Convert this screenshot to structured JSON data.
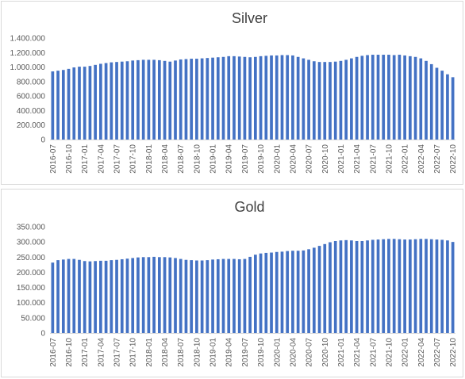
{
  "chart_data": [
    {
      "id": "silver",
      "type": "bar",
      "title": "Silver",
      "xlabel": "",
      "ylabel": "",
      "ylim": [
        0,
        1400000
      ],
      "yticks": [
        "0",
        "200.000",
        "400.000",
        "600.000",
        "800.000",
        "1.000.000",
        "1.200.000",
        "1.400.000"
      ],
      "grid": false,
      "legend": "none",
      "bar_color": "#4472c4",
      "categories": [
        "2016-07",
        "2016-08",
        "2016-09",
        "2016-10",
        "2016-11",
        "2016-12",
        "2017-01",
        "2017-02",
        "2017-03",
        "2017-04",
        "2017-05",
        "2017-06",
        "2017-07",
        "2017-08",
        "2017-09",
        "2017-10",
        "2017-11",
        "2017-12",
        "2018-01",
        "2018-02",
        "2018-03",
        "2018-04",
        "2018-05",
        "2018-06",
        "2018-07",
        "2018-08",
        "2018-09",
        "2018-10",
        "2018-11",
        "2018-12",
        "2019-01",
        "2019-02",
        "2019-03",
        "2019-04",
        "2019-05",
        "2019-06",
        "2019-07",
        "2019-08",
        "2019-09",
        "2019-10",
        "2019-11",
        "2019-12",
        "2020-01",
        "2020-02",
        "2020-03",
        "2020-04",
        "2020-05",
        "2020-06",
        "2020-07",
        "2020-08",
        "2020-09",
        "2020-10",
        "2020-11",
        "2020-12",
        "2021-01",
        "2021-02",
        "2021-03",
        "2021-04",
        "2021-05",
        "2021-06",
        "2021-07",
        "2021-08",
        "2021-09",
        "2021-10",
        "2021-11",
        "2021-12",
        "2022-01",
        "2022-02",
        "2022-03",
        "2022-04",
        "2022-05",
        "2022-06",
        "2022-07",
        "2022-08",
        "2022-09",
        "2022-10"
      ],
      "tick_labels": [
        "2016-07",
        "2016-10",
        "2017-01",
        "2017-04",
        "2017-07",
        "2017-10",
        "2018-01",
        "2018-04",
        "2018-07",
        "2018-10",
        "2019-01",
        "2019-04",
        "2019-07",
        "2019-10",
        "2020-01",
        "2020-04",
        "2020-07",
        "2020-10",
        "2021-01",
        "2021-04",
        "2021-07",
        "2021-10",
        "2022-01",
        "2022-04",
        "2022-07",
        "2022-10"
      ],
      "values": [
        940000,
        950000,
        960000,
        975000,
        995000,
        1005000,
        1005000,
        1015000,
        1030000,
        1045000,
        1055000,
        1065000,
        1070000,
        1075000,
        1080000,
        1090000,
        1095000,
        1100000,
        1100000,
        1100000,
        1095000,
        1085000,
        1075000,
        1090000,
        1105000,
        1110000,
        1115000,
        1115000,
        1120000,
        1125000,
        1130000,
        1135000,
        1140000,
        1150000,
        1150000,
        1145000,
        1140000,
        1135000,
        1140000,
        1150000,
        1155000,
        1160000,
        1160000,
        1165000,
        1165000,
        1160000,
        1140000,
        1120000,
        1100000,
        1080000,
        1070000,
        1070000,
        1070000,
        1075000,
        1085000,
        1100000,
        1120000,
        1140000,
        1155000,
        1165000,
        1170000,
        1170000,
        1170000,
        1170000,
        1165000,
        1170000,
        1160000,
        1150000,
        1140000,
        1120000,
        1085000,
        1040000,
        990000,
        950000,
        900000,
        860000
      ]
    },
    {
      "id": "gold",
      "type": "bar",
      "title": "Gold",
      "xlabel": "",
      "ylabel": "",
      "ylim": [
        0,
        350000
      ],
      "yticks": [
        "0",
        "50.000",
        "100.000",
        "150.000",
        "200.000",
        "250.000",
        "300.000",
        "350.000"
      ],
      "grid": false,
      "legend": "none",
      "bar_color": "#4472c4",
      "categories": [
        "2016-07",
        "2016-08",
        "2016-09",
        "2016-10",
        "2016-11",
        "2016-12",
        "2017-01",
        "2017-02",
        "2017-03",
        "2017-04",
        "2017-05",
        "2017-06",
        "2017-07",
        "2017-08",
        "2017-09",
        "2017-10",
        "2017-11",
        "2017-12",
        "2018-01",
        "2018-02",
        "2018-03",
        "2018-04",
        "2018-05",
        "2018-06",
        "2018-07",
        "2018-08",
        "2018-09",
        "2018-10",
        "2018-11",
        "2018-12",
        "2019-01",
        "2019-02",
        "2019-03",
        "2019-04",
        "2019-05",
        "2019-06",
        "2019-07",
        "2019-08",
        "2019-09",
        "2019-10",
        "2019-11",
        "2019-12",
        "2020-01",
        "2020-02",
        "2020-03",
        "2020-04",
        "2020-05",
        "2020-06",
        "2020-07",
        "2020-08",
        "2020-09",
        "2020-10",
        "2020-11",
        "2020-12",
        "2021-01",
        "2021-02",
        "2021-03",
        "2021-04",
        "2021-05",
        "2021-06",
        "2021-07",
        "2021-08",
        "2021-09",
        "2021-10",
        "2021-11",
        "2021-12",
        "2022-01",
        "2022-02",
        "2022-03",
        "2022-04",
        "2022-05",
        "2022-06",
        "2022-07",
        "2022-08",
        "2022-09",
        "2022-10"
      ],
      "tick_labels": [
        "2016-07",
        "2016-10",
        "2017-01",
        "2017-04",
        "2017-07",
        "2017-10",
        "2018-01",
        "2018-04",
        "2018-07",
        "2018-10",
        "2019-01",
        "2019-04",
        "2019-07",
        "2019-10",
        "2020-01",
        "2020-04",
        "2020-07",
        "2020-10",
        "2021-01",
        "2021-04",
        "2021-07",
        "2021-10",
        "2022-01",
        "2022-04",
        "2022-07",
        "2022-10"
      ],
      "values": [
        232000,
        240000,
        242000,
        244000,
        244000,
        241000,
        237000,
        236000,
        237000,
        238000,
        238000,
        240000,
        241000,
        243000,
        245000,
        247000,
        249000,
        250000,
        250000,
        251000,
        250000,
        250000,
        249000,
        247000,
        244000,
        241000,
        240000,
        239000,
        239000,
        240000,
        242000,
        243000,
        244000,
        244000,
        244000,
        243000,
        244000,
        251000,
        258000,
        262000,
        264000,
        265000,
        267000,
        268000,
        270000,
        271000,
        271000,
        272000,
        276000,
        281000,
        287000,
        293000,
        299000,
        303000,
        305000,
        306000,
        305000,
        303000,
        303000,
        305000,
        307000,
        308000,
        309000,
        310000,
        310000,
        309000,
        308000,
        308000,
        309000,
        310000,
        310000,
        309000,
        308000,
        307000,
        305000,
        300000
      ]
    }
  ]
}
